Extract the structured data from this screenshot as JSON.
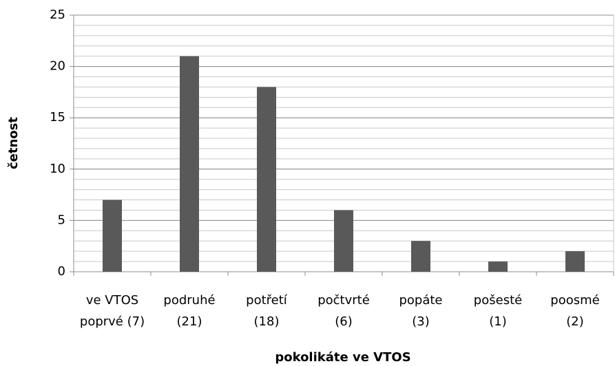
{
  "chart_data": {
    "type": "bar",
    "x_label": "pokolikáte ve VTOS",
    "y_label": "četnost",
    "categories": [
      [
        "ve VTOS",
        "poprvé (7)"
      ],
      [
        "podruhé",
        "(21)"
      ],
      [
        "potřetí",
        "(18)"
      ],
      [
        "počtvrté",
        "(6)"
      ],
      [
        "popáte",
        "(3)"
      ],
      [
        "pošesté",
        "(1)"
      ],
      [
        "poosmé",
        "(2)"
      ]
    ],
    "values": [
      7,
      21,
      18,
      6,
      3,
      1,
      2
    ],
    "color": "#595959",
    "ylim": [
      0,
      25
    ],
    "yticks": [
      0,
      5,
      10,
      15,
      20,
      25
    ],
    "grid": true
  }
}
